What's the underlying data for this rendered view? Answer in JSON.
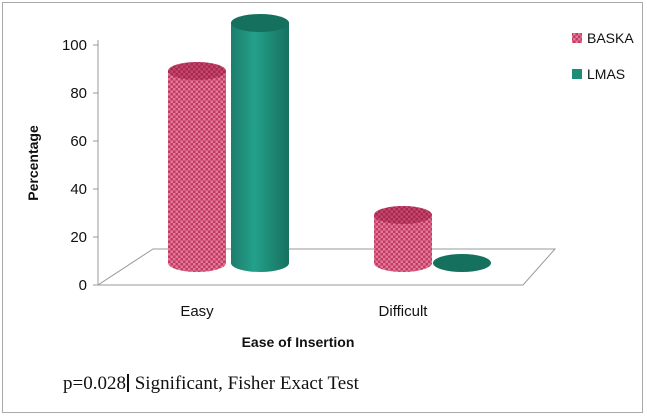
{
  "chart_data": {
    "type": "bar",
    "style": "3d-cylinder",
    "categories": [
      "Easy",
      "Difficult"
    ],
    "series": [
      {
        "name": "BASKA",
        "values": [
          80,
          20
        ],
        "color": "#c2365e",
        "pattern": "checkered"
      },
      {
        "name": "LMAS",
        "values": [
          100,
          0
        ],
        "color": "#1f8c78"
      }
    ],
    "xlabel": "Ease of Insertion",
    "ylabel": "Percentage",
    "ylim": [
      0,
      100
    ],
    "yticks": [
      0,
      20,
      40,
      60,
      80,
      100
    ],
    "grid": false,
    "legend": "top-right"
  },
  "footnote": {
    "value": "p=0.028",
    "text": " Significant, Fisher Exact Test"
  }
}
